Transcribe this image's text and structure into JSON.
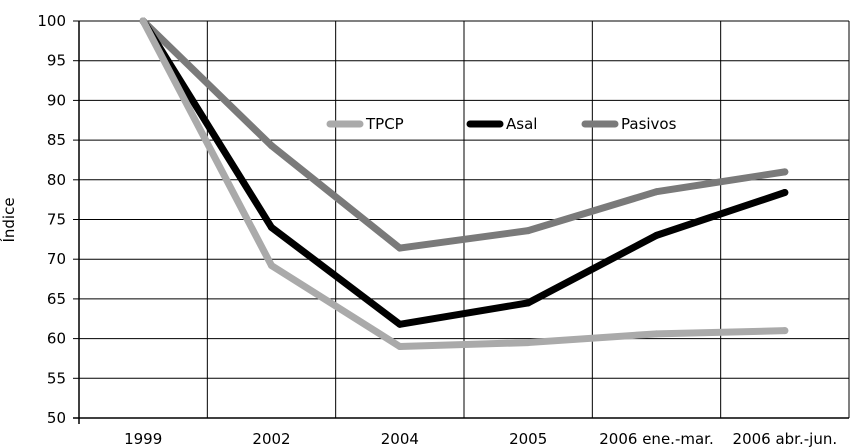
{
  "chart_data": {
    "type": "line",
    "title": "",
    "xlabel": "",
    "ylabel": "Índice",
    "categories": [
      "1999",
      "2002",
      "2004",
      "2005",
      "2006 ene.-mar.",
      "2006 abr.-jun."
    ],
    "ylim": [
      50,
      100
    ],
    "yticks": [
      50,
      55,
      60,
      65,
      70,
      75,
      80,
      85,
      90,
      95,
      100
    ],
    "grid": true,
    "legend_position": "top-center",
    "series": [
      {
        "name": "TPCP",
        "color": "#aaaaaa",
        "values": [
          100,
          69.2,
          59.0,
          59.5,
          60.6,
          61.0
        ]
      },
      {
        "name": "Asal",
        "color": "#000000",
        "values": [
          100,
          74.0,
          61.8,
          64.5,
          73.0,
          78.4
        ]
      },
      {
        "name": "Pasivos",
        "color": "#7a7a7a",
        "values": [
          100,
          84.3,
          71.4,
          73.6,
          78.5,
          81.0
        ]
      }
    ]
  }
}
